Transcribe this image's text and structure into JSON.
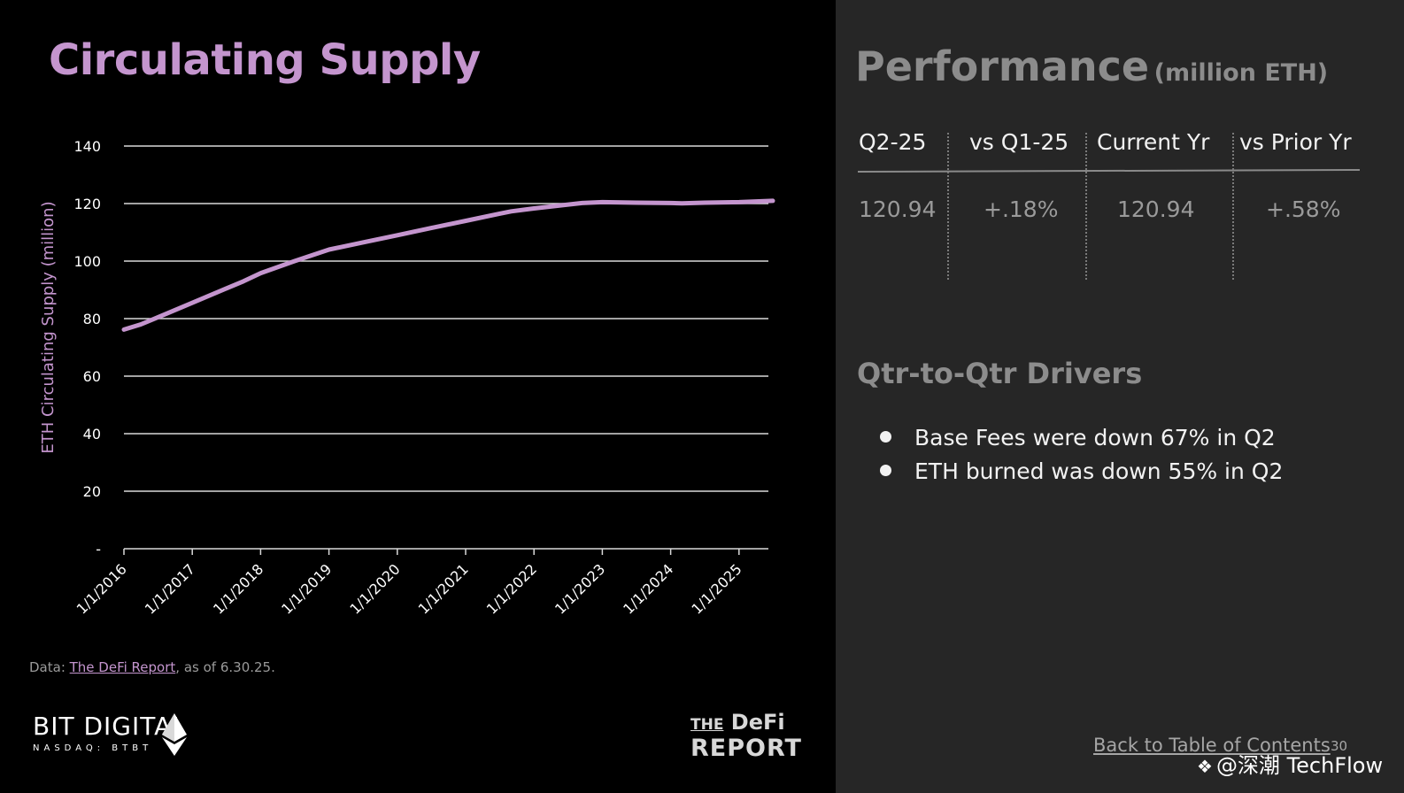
{
  "left_panel": {
    "title": "Circulating Supply",
    "source_prefix": "Data: ",
    "source_link": "The DeFi Report",
    "source_suffix": ", as of 6.30.25.",
    "bit_digital_name": "BIT DIGITAL",
    "bit_digital_sub": "NASDAQ: BTBT",
    "defi_logo_the": "THE",
    "defi_logo_defi": "DeFi",
    "defi_logo_report": "REPORT"
  },
  "chart_data": {
    "type": "line",
    "title": "Circulating Supply",
    "xlabel": "",
    "ylabel": "ETH Circulating Supply (million)",
    "ylim": [
      0,
      140
    ],
    "y_ticks": [
      0,
      20,
      40,
      60,
      80,
      100,
      120,
      140
    ],
    "y_tick_labels": [
      "-",
      "20",
      "40",
      "60",
      "80",
      "100",
      "120",
      "140"
    ],
    "x_tick_labels": [
      "1/1/2016",
      "1/1/2017",
      "1/1/2018",
      "1/1/2019",
      "1/1/2020",
      "1/1/2021",
      "1/1/2022",
      "1/1/2023",
      "1/1/2024",
      "1/1/2025"
    ],
    "grid": true,
    "series": [
      {
        "color": "#c495ce",
        "x": [
          "2016-01-01",
          "2016-04-01",
          "2016-07-01",
          "2017-01-01",
          "2017-07-01",
          "2017-10-01",
          "2018-01-01",
          "2018-07-01",
          "2019-01-01",
          "2019-07-01",
          "2020-01-01",
          "2020-07-01",
          "2021-01-01",
          "2021-07-01",
          "2021-09-01",
          "2022-01-01",
          "2022-06-01",
          "2022-09-15",
          "2023-01-01",
          "2023-07-01",
          "2024-01-01",
          "2024-03-01",
          "2024-07-01",
          "2025-01-01",
          "2025-06-30"
        ],
        "values": [
          76.2,
          78.0,
          80.5,
          85.5,
          90.5,
          93.0,
          95.8,
          100.0,
          104.0,
          106.5,
          109.0,
          111.5,
          114.0,
          116.5,
          117.3,
          118.3,
          119.4,
          120.2,
          120.5,
          120.3,
          120.2,
          120.1,
          120.3,
          120.5,
          120.94
        ]
      }
    ]
  },
  "performance": {
    "title": "Performance",
    "unit": "(million ETH)",
    "headers": [
      "Q2-25",
      "vs Q1-25",
      "Current Yr",
      "vs Prior Yr"
    ],
    "values": [
      "120.94",
      "+.18%",
      "120.94",
      "+.58%"
    ]
  },
  "drivers": {
    "title": "Qtr-to-Qtr Drivers",
    "items": [
      "Base Fees were down 67% in Q2",
      "ETH burned was down 55% in Q2"
    ]
  },
  "footer": {
    "back_link": "Back to Table of Contents",
    "page_number": "30",
    "watermark": "@深潮 TechFlow"
  },
  "colors": {
    "accent": "#c495ce",
    "left_bg": "#000000",
    "right_bg": "#262626"
  }
}
